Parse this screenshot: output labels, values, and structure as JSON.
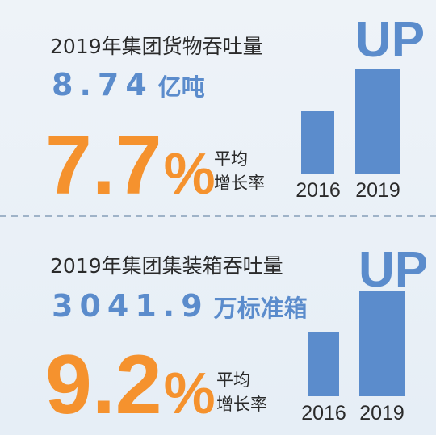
{
  "sections": [
    {
      "title": "2019年集团货物吞吐量",
      "value": "8.74",
      "unit": "亿吨",
      "rate": "7.7",
      "rate_suffix": "%",
      "rate_label": [
        "平均",
        "增长率"
      ],
      "badge": "UP",
      "years": [
        "2016",
        "2019"
      ]
    },
    {
      "title": "2019年集团集装箱吞吐量",
      "value": "3041.9",
      "unit": "万标准箱",
      "rate": "9.2",
      "rate_suffix": "%",
      "rate_label": [
        "平均",
        "增长率"
      ],
      "badge": "UP",
      "years": [
        "2016",
        "2019"
      ]
    }
  ]
}
